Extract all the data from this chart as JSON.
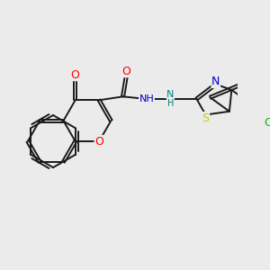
{
  "background_color": "#ebebeb",
  "bond_color": "#1a1a1a",
  "atom_colors": {
    "O": "#ff0000",
    "N": "#0000cc",
    "S": "#cccc00",
    "Cl": "#00bb00",
    "N_teal": "#008080",
    "H_gray": "#808080"
  },
  "font_size": 8,
  "line_width": 1.4,
  "figsize": [
    3.0,
    3.0
  ],
  "dpi": 100
}
